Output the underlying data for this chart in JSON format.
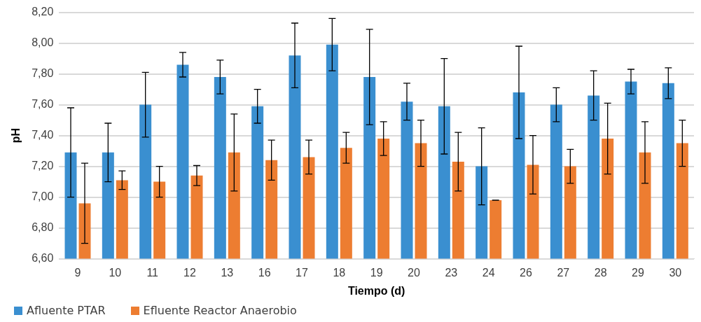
{
  "chart_data": {
    "type": "bar",
    "xlabel": "Tiempo (d)",
    "ylabel": "pH",
    "categories": [
      "9",
      "10",
      "11",
      "12",
      "13",
      "16",
      "17",
      "18",
      "19",
      "20",
      "23",
      "24",
      "26",
      "27",
      "28",
      "29",
      "30"
    ],
    "series": [
      {
        "name": "Afluente PTAR",
        "color": "#3a8fd0",
        "values": [
          7.29,
          7.29,
          7.6,
          7.86,
          7.78,
          7.59,
          7.92,
          7.99,
          7.78,
          7.62,
          7.59,
          7.2,
          7.68,
          7.6,
          7.66,
          7.75,
          7.74
        ],
        "errors": [
          0.29,
          0.19,
          0.21,
          0.08,
          0.11,
          0.11,
          0.21,
          0.17,
          0.31,
          0.12,
          0.31,
          0.25,
          0.3,
          0.11,
          0.16,
          0.08,
          0.1
        ]
      },
      {
        "name": "Efluente Reactor Anaerobio",
        "color": "#ed7d31",
        "values": [
          6.96,
          7.11,
          7.1,
          7.14,
          7.29,
          7.24,
          7.26,
          7.32,
          7.38,
          7.35,
          7.23,
          6.98,
          7.21,
          7.2,
          7.38,
          7.29,
          7.35
        ],
        "errors": [
          0.26,
          0.06,
          0.1,
          0.065,
          0.25,
          0.13,
          0.11,
          0.1,
          0.11,
          0.15,
          0.19,
          0,
          0.19,
          0.11,
          0.23,
          0.2,
          0.15
        ]
      }
    ],
    "ylim": [
      6.6,
      8.2
    ],
    "yticks": [
      {
        "value": 6.6,
        "label": "6,60"
      },
      {
        "value": 6.8,
        "label": "6,80"
      },
      {
        "value": 7.0,
        "label": "7,00"
      },
      {
        "value": 7.2,
        "label": "7,20"
      },
      {
        "value": 7.4,
        "label": "7,40"
      },
      {
        "value": 7.6,
        "label": "7,60"
      },
      {
        "value": 7.8,
        "label": "7,80"
      },
      {
        "value": 8.0,
        "label": "8,00"
      },
      {
        "value": 8.2,
        "label": "8,20"
      }
    ],
    "grid": "y",
    "legend": "bottom left"
  }
}
